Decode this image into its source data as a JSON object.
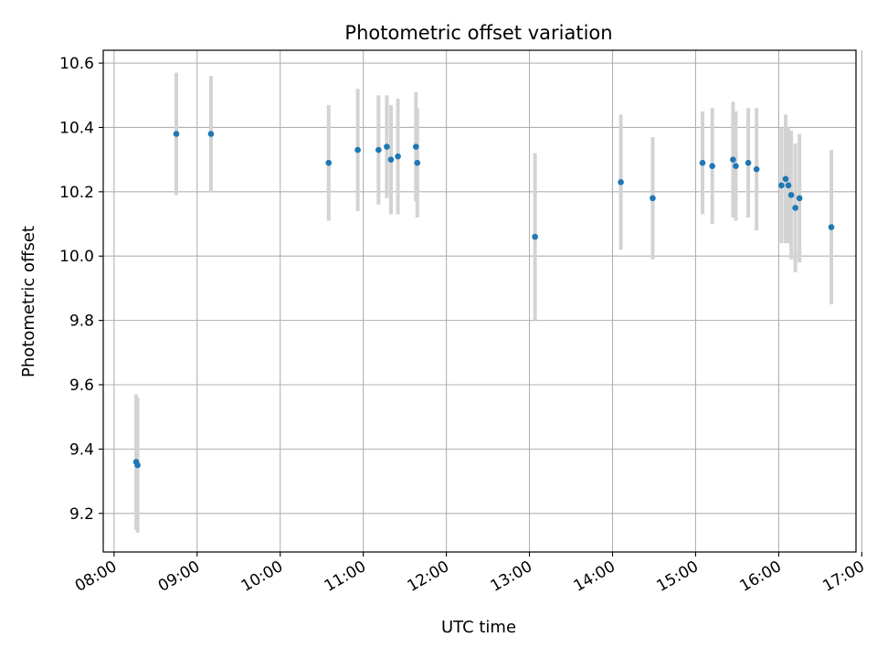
{
  "chart_data": {
    "type": "scatter",
    "title": "Photometric offset variation",
    "xlabel": "UTC time",
    "ylabel": "Photometric offset",
    "x_unit": "hours",
    "xlim": [
      7.87,
      16.93
    ],
    "ylim": [
      9.08,
      10.64
    ],
    "x_ticks": [
      8,
      9,
      10,
      11,
      12,
      13,
      14,
      15,
      16,
      17
    ],
    "x_tick_labels": [
      "08:00",
      "09:00",
      "10:00",
      "11:00",
      "12:00",
      "13:00",
      "14:00",
      "15:00",
      "16:00",
      "17:00"
    ],
    "y_ticks": [
      9.2,
      9.4,
      9.6,
      9.8,
      10.0,
      10.2,
      10.4,
      10.6
    ],
    "y_tick_labels": [
      "9.2",
      "9.4",
      "9.6",
      "9.8",
      "10.0",
      "10.2",
      "10.4",
      "10.6"
    ],
    "grid": true,
    "colors": {
      "point": "#1f77b4",
      "errorbar": "#d3d3d3",
      "grid": "#b0b0b0"
    },
    "points": [
      {
        "time": "08:16",
        "y": 9.36,
        "yerr": 0.21
      },
      {
        "time": "08:17",
        "y": 9.35,
        "yerr": 0.21
      },
      {
        "time": "08:45",
        "y": 10.38,
        "yerr": 0.19
      },
      {
        "time": "09:10",
        "y": 10.38,
        "yerr": 0.18
      },
      {
        "time": "10:35",
        "y": 10.29,
        "yerr": 0.18
      },
      {
        "time": "10:56",
        "y": 10.33,
        "yerr": 0.19
      },
      {
        "time": "11:11",
        "y": 10.33,
        "yerr": 0.17
      },
      {
        "time": "11:17",
        "y": 10.34,
        "yerr": 0.16
      },
      {
        "time": "11:20",
        "y": 10.3,
        "yerr": 0.17
      },
      {
        "time": "11:25",
        "y": 10.31,
        "yerr": 0.18
      },
      {
        "time": "11:38",
        "y": 10.34,
        "yerr": 0.17
      },
      {
        "time": "11:39",
        "y": 10.29,
        "yerr": 0.17
      },
      {
        "time": "13:04",
        "y": 10.06,
        "yerr": 0.26
      },
      {
        "time": "14:06",
        "y": 10.23,
        "yerr": 0.21
      },
      {
        "time": "14:29",
        "y": 10.18,
        "yerr": 0.19
      },
      {
        "time": "15:05",
        "y": 10.29,
        "yerr": 0.16
      },
      {
        "time": "15:12",
        "y": 10.28,
        "yerr": 0.18
      },
      {
        "time": "15:27",
        "y": 10.3,
        "yerr": 0.18
      },
      {
        "time": "15:29",
        "y": 10.28,
        "yerr": 0.17
      },
      {
        "time": "15:38",
        "y": 10.29,
        "yerr": 0.17
      },
      {
        "time": "15:44",
        "y": 10.27,
        "yerr": 0.19
      },
      {
        "time": "16:02",
        "y": 10.22,
        "yerr": 0.18
      },
      {
        "time": "16:05",
        "y": 10.24,
        "yerr": 0.2
      },
      {
        "time": "16:07",
        "y": 10.22,
        "yerr": 0.18
      },
      {
        "time": "16:09",
        "y": 10.19,
        "yerr": 0.2
      },
      {
        "time": "16:12",
        "y": 10.15,
        "yerr": 0.2
      },
      {
        "time": "16:15",
        "y": 10.18,
        "yerr": 0.2
      },
      {
        "time": "16:38",
        "y": 10.09,
        "yerr": 0.24
      }
    ]
  }
}
